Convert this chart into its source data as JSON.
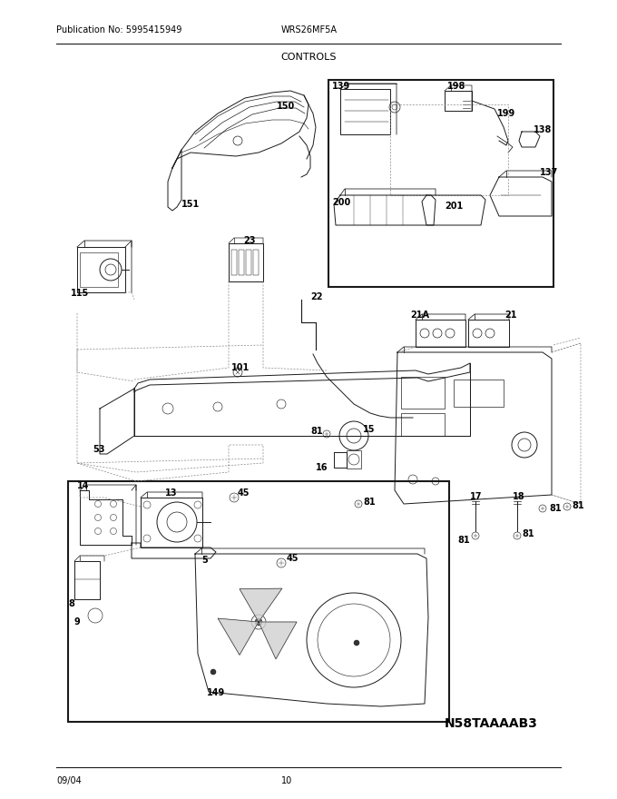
{
  "title": "CONTROLS",
  "pub_no": "Publication No: 5995415949",
  "model": "WRS26MF5A",
  "date": "09/04",
  "page": "10",
  "diagram_id": "N58TAAAAB3",
  "bg_color": "#ffffff",
  "line_color": "#1a1a1a",
  "fig_width": 6.8,
  "fig_height": 8.8,
  "dpi": 100
}
